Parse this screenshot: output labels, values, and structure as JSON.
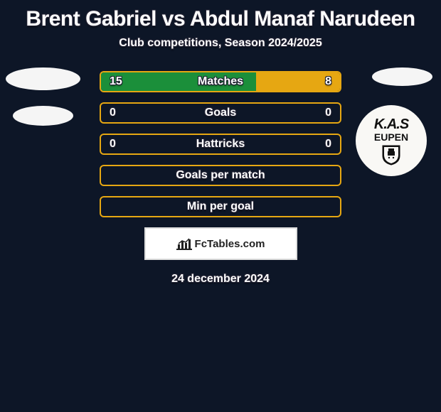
{
  "title": "Brent Gabriel vs Abdul Manaf Narudeen",
  "subtitle": "Club competitions, Season 2024/2025",
  "date": "24 december 2024",
  "footer_brand": "FcTables.com",
  "colors": {
    "bg": "#0d1627",
    "accent_left": "#1b8f3a",
    "accent_right": "#e6a712",
    "bar_border": "#e6a712",
    "text": "#ffffff"
  },
  "badge_right": {
    "line1": "K.A.S",
    "line2": "EUPEN"
  },
  "bars": [
    {
      "label": "Matches",
      "left_val": "15",
      "right_val": "8",
      "left_pct": 65,
      "right_pct": 35,
      "left_color": "#1b8f3a",
      "right_color": "#e6a712"
    },
    {
      "label": "Goals",
      "left_val": "0",
      "right_val": "0",
      "left_pct": 0,
      "right_pct": 0,
      "left_color": "#1b8f3a",
      "right_color": "#e6a712"
    },
    {
      "label": "Hattricks",
      "left_val": "0",
      "right_val": "0",
      "left_pct": 0,
      "right_pct": 0,
      "left_color": "#1b8f3a",
      "right_color": "#e6a712"
    },
    {
      "label": "Goals per match",
      "left_val": "",
      "right_val": "",
      "left_pct": 0,
      "right_pct": 0,
      "left_color": "#1b8f3a",
      "right_color": "#e6a712"
    },
    {
      "label": "Min per goal",
      "left_val": "",
      "right_val": "",
      "left_pct": 0,
      "right_pct": 0,
      "left_color": "#1b8f3a",
      "right_color": "#e6a712"
    }
  ]
}
